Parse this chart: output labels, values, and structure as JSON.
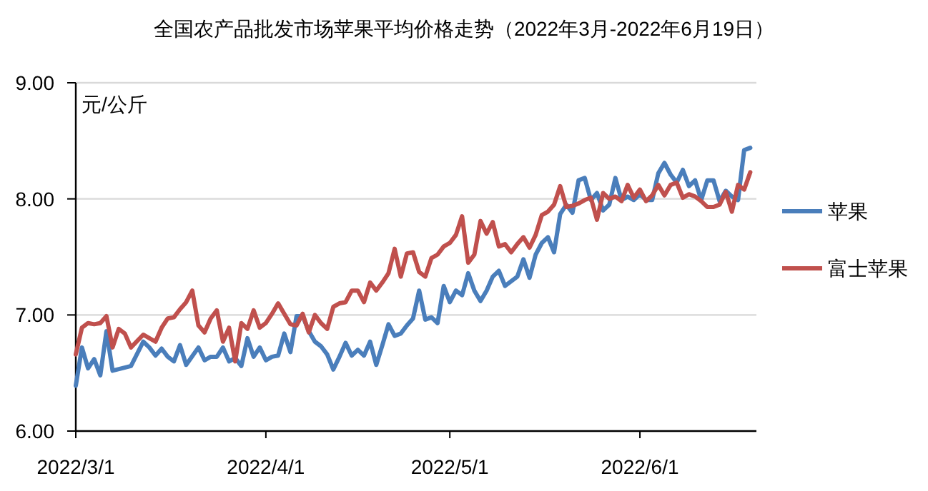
{
  "chart_data": {
    "type": "line",
    "title": "全国农产品批发市场苹果平均价格走势（2022年3月-2022年6月19日）",
    "ylabel": "元/公斤",
    "xlim": [
      "2022-03-01",
      "2022-06-20"
    ],
    "xticks": [
      {
        "value": "2022-03-01",
        "label": "2022/3/1"
      },
      {
        "value": "2022-04-01",
        "label": "2022/4/1"
      },
      {
        "value": "2022-05-01",
        "label": "2022/5/1"
      },
      {
        "value": "2022-06-01",
        "label": "2022/6/1"
      }
    ],
    "ylim": [
      6,
      9
    ],
    "yticks": [
      {
        "value": 6,
        "label": "6.00"
      },
      {
        "value": 7,
        "label": "7.00"
      },
      {
        "value": 8,
        "label": "8.00"
      },
      {
        "value": 9,
        "label": "9.00"
      }
    ],
    "grid": "y",
    "legend": "right",
    "series": [
      {
        "name": "苹果",
        "color": "#4a7ebb",
        "x": [
          "2022-03-01",
          "2022-03-02",
          "2022-03-03",
          "2022-03-04",
          "2022-03-05",
          "2022-03-06",
          "2022-03-07",
          "2022-03-10",
          "2022-03-12",
          "2022-03-13",
          "2022-03-14",
          "2022-03-15",
          "2022-03-16",
          "2022-03-17",
          "2022-03-18",
          "2022-03-19",
          "2022-03-21",
          "2022-03-22",
          "2022-03-23",
          "2022-03-24",
          "2022-03-25",
          "2022-03-26",
          "2022-03-27",
          "2022-03-28",
          "2022-03-29",
          "2022-03-30",
          "2022-03-31",
          "2022-04-01",
          "2022-04-02",
          "2022-04-03",
          "2022-04-04",
          "2022-04-05",
          "2022-04-06",
          "2022-04-07",
          "2022-04-08",
          "2022-04-09",
          "2022-04-10",
          "2022-04-11",
          "2022-04-12",
          "2022-04-13",
          "2022-04-14",
          "2022-04-15",
          "2022-04-16",
          "2022-04-17",
          "2022-04-18",
          "2022-04-19",
          "2022-04-20",
          "2022-04-21",
          "2022-04-22",
          "2022-04-23",
          "2022-04-24",
          "2022-04-25",
          "2022-04-26",
          "2022-04-27",
          "2022-04-28",
          "2022-04-29",
          "2022-04-30",
          "2022-05-01",
          "2022-05-02",
          "2022-05-03",
          "2022-05-04",
          "2022-05-05",
          "2022-05-06",
          "2022-05-07",
          "2022-05-08",
          "2022-05-09",
          "2022-05-10",
          "2022-05-11",
          "2022-05-12",
          "2022-05-13",
          "2022-05-14",
          "2022-05-15",
          "2022-05-16",
          "2022-05-17",
          "2022-05-18",
          "2022-05-19",
          "2022-05-20",
          "2022-05-21",
          "2022-05-22",
          "2022-05-23",
          "2022-05-24",
          "2022-05-25",
          "2022-05-26",
          "2022-05-27",
          "2022-05-28",
          "2022-05-29",
          "2022-05-30",
          "2022-05-31",
          "2022-06-01",
          "2022-06-02",
          "2022-06-03",
          "2022-06-04",
          "2022-06-05",
          "2022-06-06",
          "2022-06-07",
          "2022-06-08",
          "2022-06-09",
          "2022-06-10",
          "2022-06-11",
          "2022-06-12",
          "2022-06-13",
          "2022-06-14",
          "2022-06-15",
          "2022-06-16",
          "2022-06-17",
          "2022-06-18",
          "2022-06-19"
        ],
        "values": [
          6.39,
          6.72,
          6.54,
          6.62,
          6.48,
          6.86,
          6.52,
          6.56,
          6.77,
          6.72,
          6.65,
          6.71,
          6.64,
          6.6,
          6.74,
          6.57,
          6.72,
          6.61,
          6.64,
          6.64,
          6.72,
          6.6,
          6.63,
          6.56,
          6.8,
          6.64,
          6.72,
          6.61,
          6.64,
          6.65,
          6.84,
          6.68,
          6.99,
          6.99,
          6.86,
          6.77,
          6.73,
          6.66,
          6.53,
          6.64,
          6.76,
          6.65,
          6.7,
          6.65,
          6.77,
          6.57,
          6.74,
          6.92,
          6.82,
          6.84,
          6.91,
          6.97,
          7.21,
          6.96,
          6.98,
          6.93,
          7.25,
          7.11,
          7.21,
          7.17,
          7.36,
          7.21,
          7.12,
          7.21,
          7.33,
          7.38,
          7.25,
          7.29,
          7.33,
          7.48,
          7.32,
          7.52,
          7.62,
          7.67,
          7.54,
          7.87,
          7.95,
          7.88,
          8.16,
          8.18,
          7.99,
          8.05,
          7.9,
          7.95,
          8.18,
          7.99,
          8.02,
          7.99,
          8.04,
          7.99,
          7.99,
          8.22,
          8.31,
          8.21,
          8.14,
          8.25,
          8.11,
          8.16,
          7.99,
          8.16,
          8.16,
          7.98,
          8.07,
          8.02,
          7.99,
          8.42,
          8.44
        ]
      },
      {
        "name": "富士苹果",
        "color": "#c0504d",
        "x": [
          "2022-03-01",
          "2022-03-02",
          "2022-03-03",
          "2022-03-04",
          "2022-03-05",
          "2022-03-06",
          "2022-03-07",
          "2022-03-08",
          "2022-03-09",
          "2022-03-10",
          "2022-03-12",
          "2022-03-13",
          "2022-03-14",
          "2022-03-15",
          "2022-03-16",
          "2022-03-17",
          "2022-03-18",
          "2022-03-19",
          "2022-03-20",
          "2022-03-21",
          "2022-03-22",
          "2022-03-23",
          "2022-03-24",
          "2022-03-25",
          "2022-03-26",
          "2022-03-27",
          "2022-03-28",
          "2022-03-29",
          "2022-03-30",
          "2022-03-31",
          "2022-04-01",
          "2022-04-02",
          "2022-04-03",
          "2022-04-04",
          "2022-04-05",
          "2022-04-06",
          "2022-04-07",
          "2022-04-08",
          "2022-04-09",
          "2022-04-10",
          "2022-04-11",
          "2022-04-12",
          "2022-04-13",
          "2022-04-14",
          "2022-04-15",
          "2022-04-16",
          "2022-04-17",
          "2022-04-18",
          "2022-04-19",
          "2022-04-20",
          "2022-04-21",
          "2022-04-22",
          "2022-04-23",
          "2022-04-24",
          "2022-04-25",
          "2022-04-26",
          "2022-04-27",
          "2022-04-28",
          "2022-04-29",
          "2022-04-30",
          "2022-05-01",
          "2022-05-02",
          "2022-05-03",
          "2022-05-04",
          "2022-05-05",
          "2022-05-06",
          "2022-05-07",
          "2022-05-08",
          "2022-05-09",
          "2022-05-10",
          "2022-05-11",
          "2022-05-12",
          "2022-05-13",
          "2022-05-14",
          "2022-05-15",
          "2022-05-16",
          "2022-05-17",
          "2022-05-18",
          "2022-05-19",
          "2022-05-20",
          "2022-05-21",
          "2022-05-22",
          "2022-05-23",
          "2022-05-24",
          "2022-05-25",
          "2022-05-26",
          "2022-05-27",
          "2022-05-28",
          "2022-05-29",
          "2022-05-30",
          "2022-05-31",
          "2022-06-01",
          "2022-06-02",
          "2022-06-03",
          "2022-06-04",
          "2022-06-05",
          "2022-06-06",
          "2022-06-07",
          "2022-06-08",
          "2022-06-09",
          "2022-06-10",
          "2022-06-11",
          "2022-06-12",
          "2022-06-13",
          "2022-06-14",
          "2022-06-15",
          "2022-06-16",
          "2022-06-17",
          "2022-06-18",
          "2022-06-19"
        ],
        "values": [
          6.66,
          6.89,
          6.93,
          6.92,
          6.93,
          6.99,
          6.72,
          6.88,
          6.84,
          6.72,
          6.83,
          6.8,
          6.77,
          6.89,
          6.97,
          6.98,
          7.05,
          7.11,
          7.21,
          6.91,
          6.85,
          6.97,
          7.04,
          6.77,
          6.89,
          6.6,
          6.93,
          6.88,
          7.04,
          6.89,
          6.93,
          7.01,
          7.1,
          7.01,
          6.92,
          6.91,
          7.01,
          6.85,
          7.0,
          6.93,
          6.88,
          7.07,
          7.1,
          7.11,
          7.21,
          7.21,
          7.11,
          7.28,
          7.21,
          7.28,
          7.36,
          7.57,
          7.33,
          7.53,
          7.54,
          7.37,
          7.33,
          7.49,
          7.52,
          7.59,
          7.62,
          7.69,
          7.85,
          7.45,
          7.52,
          7.81,
          7.7,
          7.8,
          7.59,
          7.61,
          7.54,
          7.61,
          7.67,
          7.58,
          7.69,
          7.86,
          7.89,
          7.95,
          8.11,
          7.93,
          7.94,
          7.96,
          7.99,
          8.01,
          7.82,
          8.05,
          8.0,
          8.02,
          7.98,
          8.12,
          8.01,
          8.08,
          7.98,
          8.03,
          8.12,
          8.03,
          8.12,
          8.14,
          8.01,
          8.04,
          8.02,
          7.98,
          7.93,
          7.93,
          7.95,
          8.06,
          7.89,
          8.12,
          8.08,
          8.23
        ]
      }
    ]
  }
}
